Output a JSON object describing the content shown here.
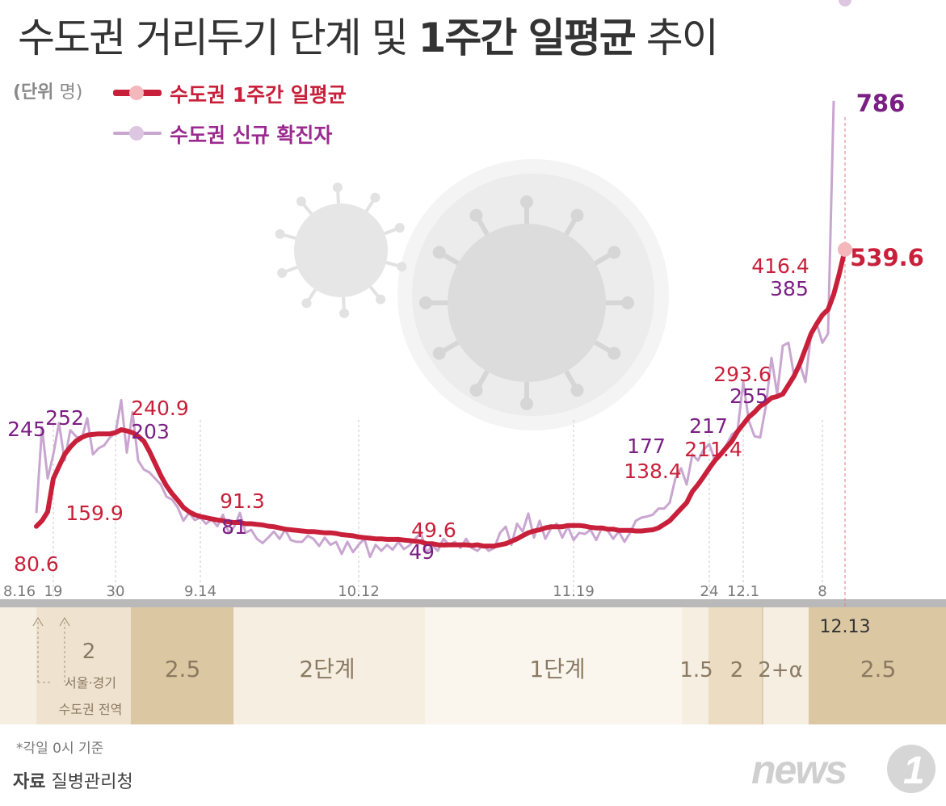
{
  "header": {
    "title_regular": "수도권 거리두기 단계 및",
    "title_bold": "1주간 일평균",
    "title_tail": "추이",
    "unit_bold": "(단위",
    "unit_rest": "명)"
  },
  "legend": [
    {
      "label": "수도권 1주간 일평균",
      "color": "#c8203a"
    },
    {
      "label": "수도권 신규 확진자",
      "color": "#9b2a8e"
    }
  ],
  "colors": {
    "avg_line": "#c8203a",
    "new_line": "#c9a6d0",
    "avg_label": "#c8203a",
    "new_label": "#7a1f83",
    "band_dark": "#dcc7a3",
    "band_light": "#f5eee1",
    "band_mid": "#ebdcc2",
    "band_lightest": "#faf6ee"
  },
  "chart_data": {
    "type": "line",
    "x_start": "8.16",
    "x_end": "12.13",
    "x_ticks": [
      "8.16",
      "19",
      "30",
      "9.14",
      "10.12",
      "11.19",
      "24",
      "12.1",
      "8"
    ],
    "end_label": "12.13",
    "series": [
      {
        "name": "수도권 1주간 일평균",
        "values": [
          80.6,
          90,
          105,
          159.9,
          180,
          200,
          212,
          222,
          228,
          232,
          233,
          234,
          234,
          234,
          236,
          240.9,
          239,
          236,
          230,
          222,
          205,
          185,
          165,
          148,
          135,
          124,
          112,
          105,
          100,
          97,
          95,
          93,
          91.3,
          90,
          88,
          87,
          87,
          85,
          85,
          84,
          83,
          81,
          80,
          78,
          76,
          75,
          74,
          73,
          72,
          72,
          71,
          70,
          70,
          69,
          67,
          66,
          65,
          63,
          62,
          61,
          60,
          60,
          59,
          59,
          59,
          58,
          57,
          56,
          55,
          52,
          52,
          50,
          49.6,
          50,
          50,
          50,
          50,
          49,
          50,
          48,
          48,
          48,
          50,
          52,
          56,
          60,
          65,
          70,
          73,
          75,
          78,
          80,
          80,
          80,
          82,
          82,
          82,
          81,
          79,
          78,
          78,
          76,
          76,
          74,
          74,
          74,
          73,
          73,
          74,
          75,
          78,
          84,
          90,
          100,
          110,
          120,
          138.4,
          150,
          163,
          177,
          190,
          200,
          211.4,
          222,
          238,
          250,
          262,
          270,
          280,
          286,
          293.6,
          296,
          300,
          315,
          330,
          350,
          375,
          400,
          416.4,
          431,
          440,
          465,
          500,
          539.6
        ]
      },
      {
        "name": "수도권 신규 확진자",
        "values": [
          103,
          245,
          160,
          200,
          252,
          190,
          240,
          230,
          225,
          260,
          200,
          210,
          215,
          228,
          235,
          290,
          203,
          270,
          190,
          175,
          170,
          160,
          150,
          130,
          125,
          112,
          90,
          103,
          91,
          95,
          85,
          92,
          81,
          100,
          70,
          80,
          103,
          70,
          75,
          60,
          53,
          62,
          72,
          60,
          75,
          58,
          55,
          55,
          65,
          60,
          48,
          62,
          50,
          55,
          35,
          55,
          38,
          50,
          60,
          30,
          50,
          40,
          50,
          42,
          55,
          43,
          49,
          60,
          70,
          37,
          49,
          40,
          60,
          50,
          55,
          45,
          60,
          45,
          40,
          50,
          40,
          45,
          70,
          80,
          50,
          85,
          72,
          102,
          62,
          90,
          60,
          77,
          85,
          62,
          80,
          58,
          70,
          68,
          75,
          58,
          78,
          74,
          60,
          72,
          55,
          70,
          90,
          95,
          97,
          100,
          110,
          110,
          120,
          160,
          177,
          150,
          200,
          190,
          208,
          217,
          190,
          203,
          215,
          233,
          240,
          320,
          255,
          230,
          228,
          280,
          360,
          300,
          380,
          385,
          330,
          350,
          320,
          400,
          416.4,
          385,
          400,
          786
        ]
      }
    ],
    "avg_labels": [
      "80.6",
      "159.9",
      "240.9",
      "91.3",
      "49.6",
      "138.4",
      "211.4",
      "293.6",
      "416.4",
      "539.6"
    ],
    "new_labels": [
      "245",
      "252",
      "203",
      "81",
      "49",
      "177",
      "217",
      "255",
      "385",
      "786"
    ],
    "ylim": [
      0,
      820
    ],
    "bands": [
      {
        "label": "2",
        "note_line1": "서울·경기",
        "note_line2": "수도권 전역"
      },
      {
        "label": "2.5"
      },
      {
        "label": "2단계"
      },
      {
        "label": "1단계"
      },
      {
        "label": "1.5"
      },
      {
        "label": "2"
      },
      {
        "label": "2+α"
      },
      {
        "label": "2.5"
      }
    ]
  },
  "footer": {
    "footnote": "*각일 0시 기준",
    "source_bold": "자료",
    "source_rest": "질병관리청",
    "logo_text": "news",
    "logo_num": "1"
  }
}
